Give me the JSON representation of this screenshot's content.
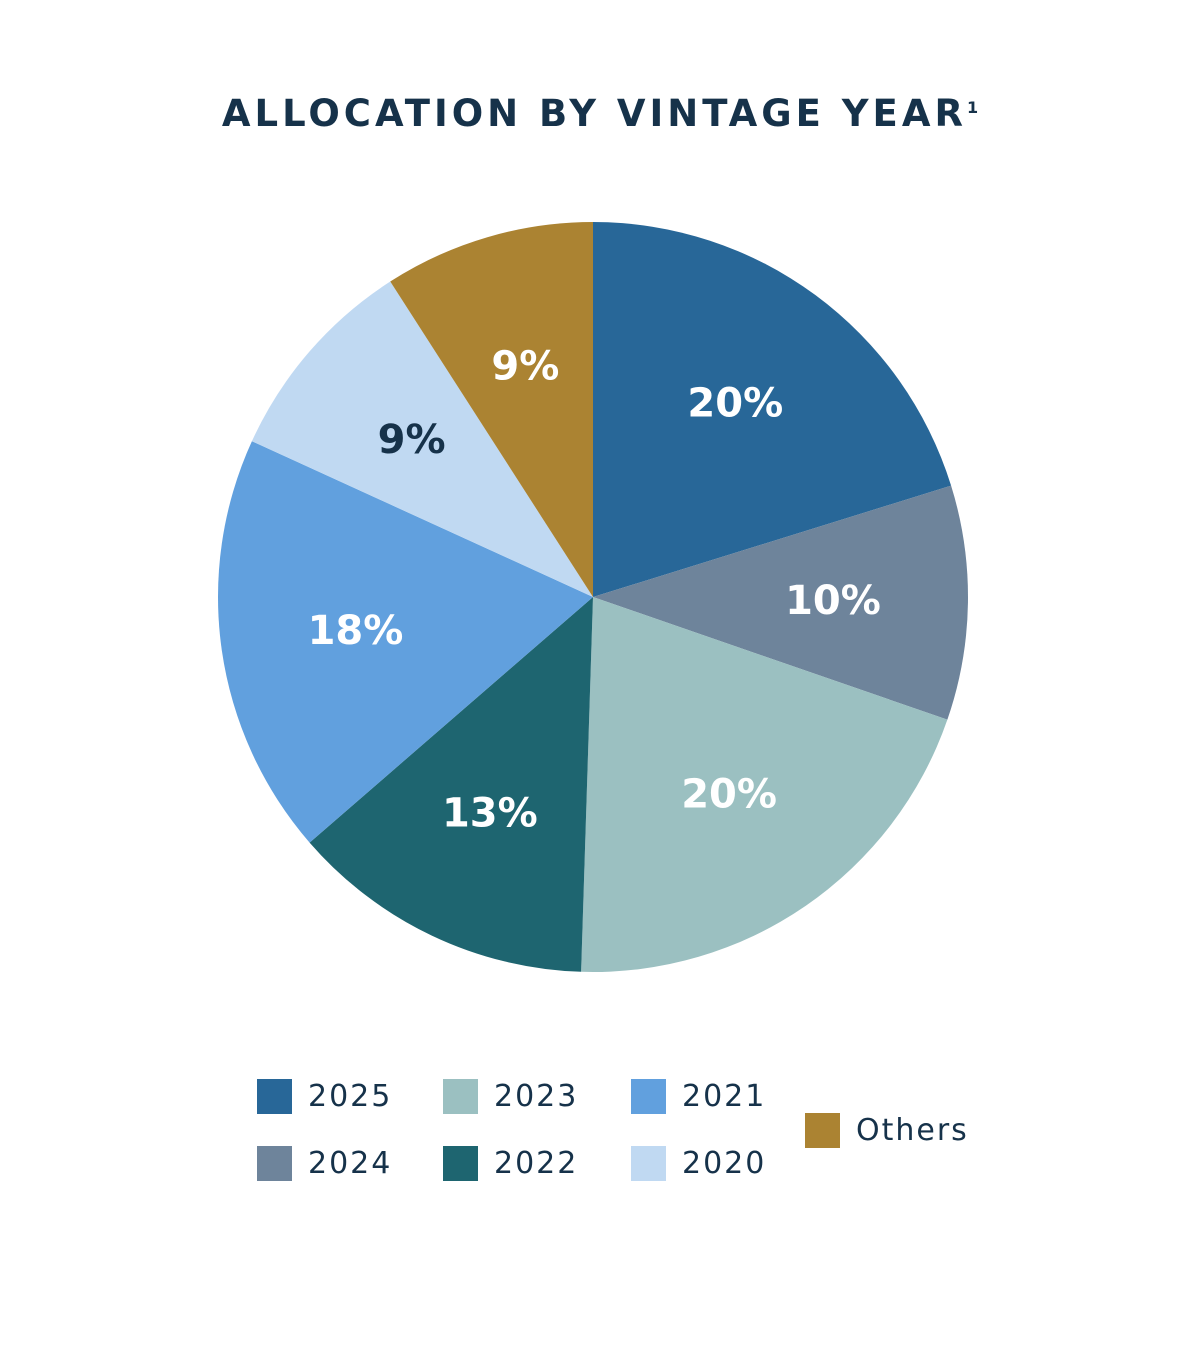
{
  "chart_data": {
    "type": "pie",
    "title": "ALLOCATION BY VINTAGE YEAR",
    "title_superscript": "1",
    "start_angle": "12 o'clock",
    "direction": "clockwise",
    "categories": [
      "2025",
      "2024",
      "2023",
      "2022",
      "2021",
      "2020",
      "Others"
    ],
    "values": [
      20,
      10,
      20,
      13,
      18,
      9,
      9
    ],
    "data_labels": [
      "20%",
      "10%",
      "20%",
      "13%",
      "18%",
      "9%",
      "9%"
    ],
    "colors": [
      "#286798",
      "#6e849b",
      "#9bc0c1",
      "#1e6570",
      "#61a0de",
      "#c0d9f2",
      "#ab8332"
    ],
    "label_colors": [
      "#ffffff",
      "#ffffff",
      "#ffffff",
      "#ffffff",
      "#ffffff",
      "#16324a",
      "#ffffff"
    ],
    "legend_placement": "bottom"
  },
  "legend": {
    "items": [
      {
        "label": "2025",
        "color": "#286798"
      },
      {
        "label": "2024",
        "color": "#6e849b"
      },
      {
        "label": "2023",
        "color": "#9bc0c1"
      },
      {
        "label": "2022",
        "color": "#1e6570"
      },
      {
        "label": "2021",
        "color": "#61a0de"
      },
      {
        "label": "2020",
        "color": "#c0d9f2"
      },
      {
        "label": "Others",
        "color": "#ab8332"
      }
    ]
  }
}
